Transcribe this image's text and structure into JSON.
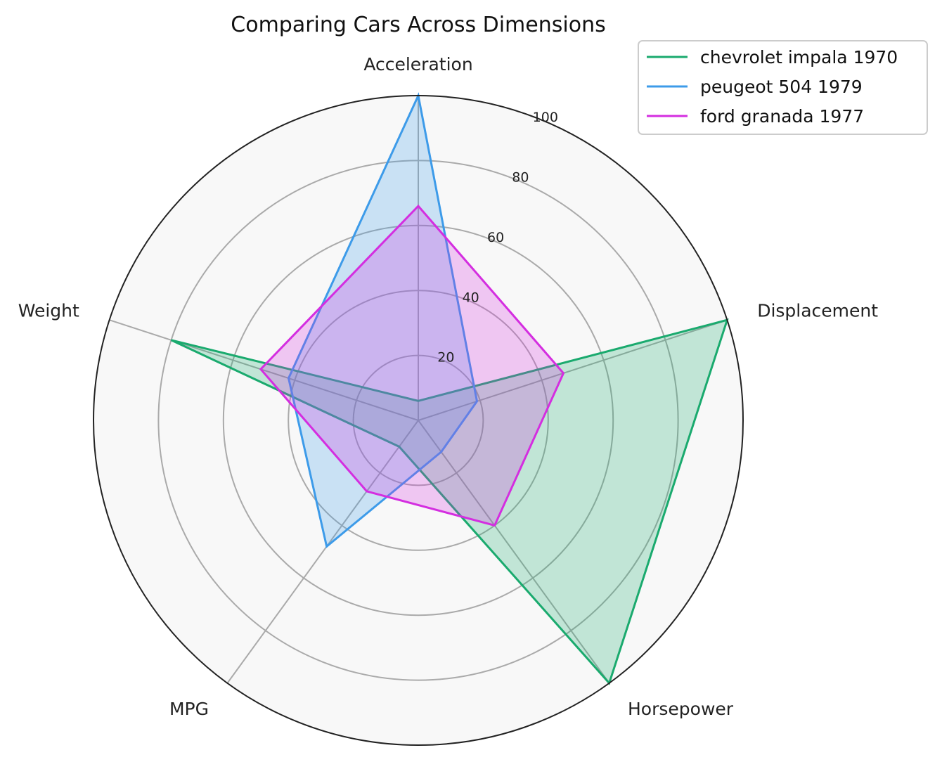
{
  "chart_data": {
    "type": "radar",
    "title": "Comparing Cars Across Dimensions",
    "axes": [
      "Acceleration",
      "Displacement",
      "Horsepower",
      "MPG",
      "Weight"
    ],
    "rlim": [
      0,
      100
    ],
    "r_ticks": [
      20,
      40,
      60,
      80,
      100
    ],
    "grid": true,
    "legend_position": "top-right",
    "background_color": "#f8f8f8",
    "series": [
      {
        "name": "chevrolet impala 1970",
        "color": "#1aaa6e",
        "values": [
          6,
          100,
          100,
          10,
          80
        ]
      },
      {
        "name": "peugeot 504 1979",
        "color": "#3d9be9",
        "values": [
          100,
          19,
          12,
          48,
          42
        ]
      },
      {
        "name": "ford granada 1977",
        "color": "#d42ee0",
        "values": [
          66,
          47,
          40,
          27,
          51
        ]
      }
    ]
  }
}
